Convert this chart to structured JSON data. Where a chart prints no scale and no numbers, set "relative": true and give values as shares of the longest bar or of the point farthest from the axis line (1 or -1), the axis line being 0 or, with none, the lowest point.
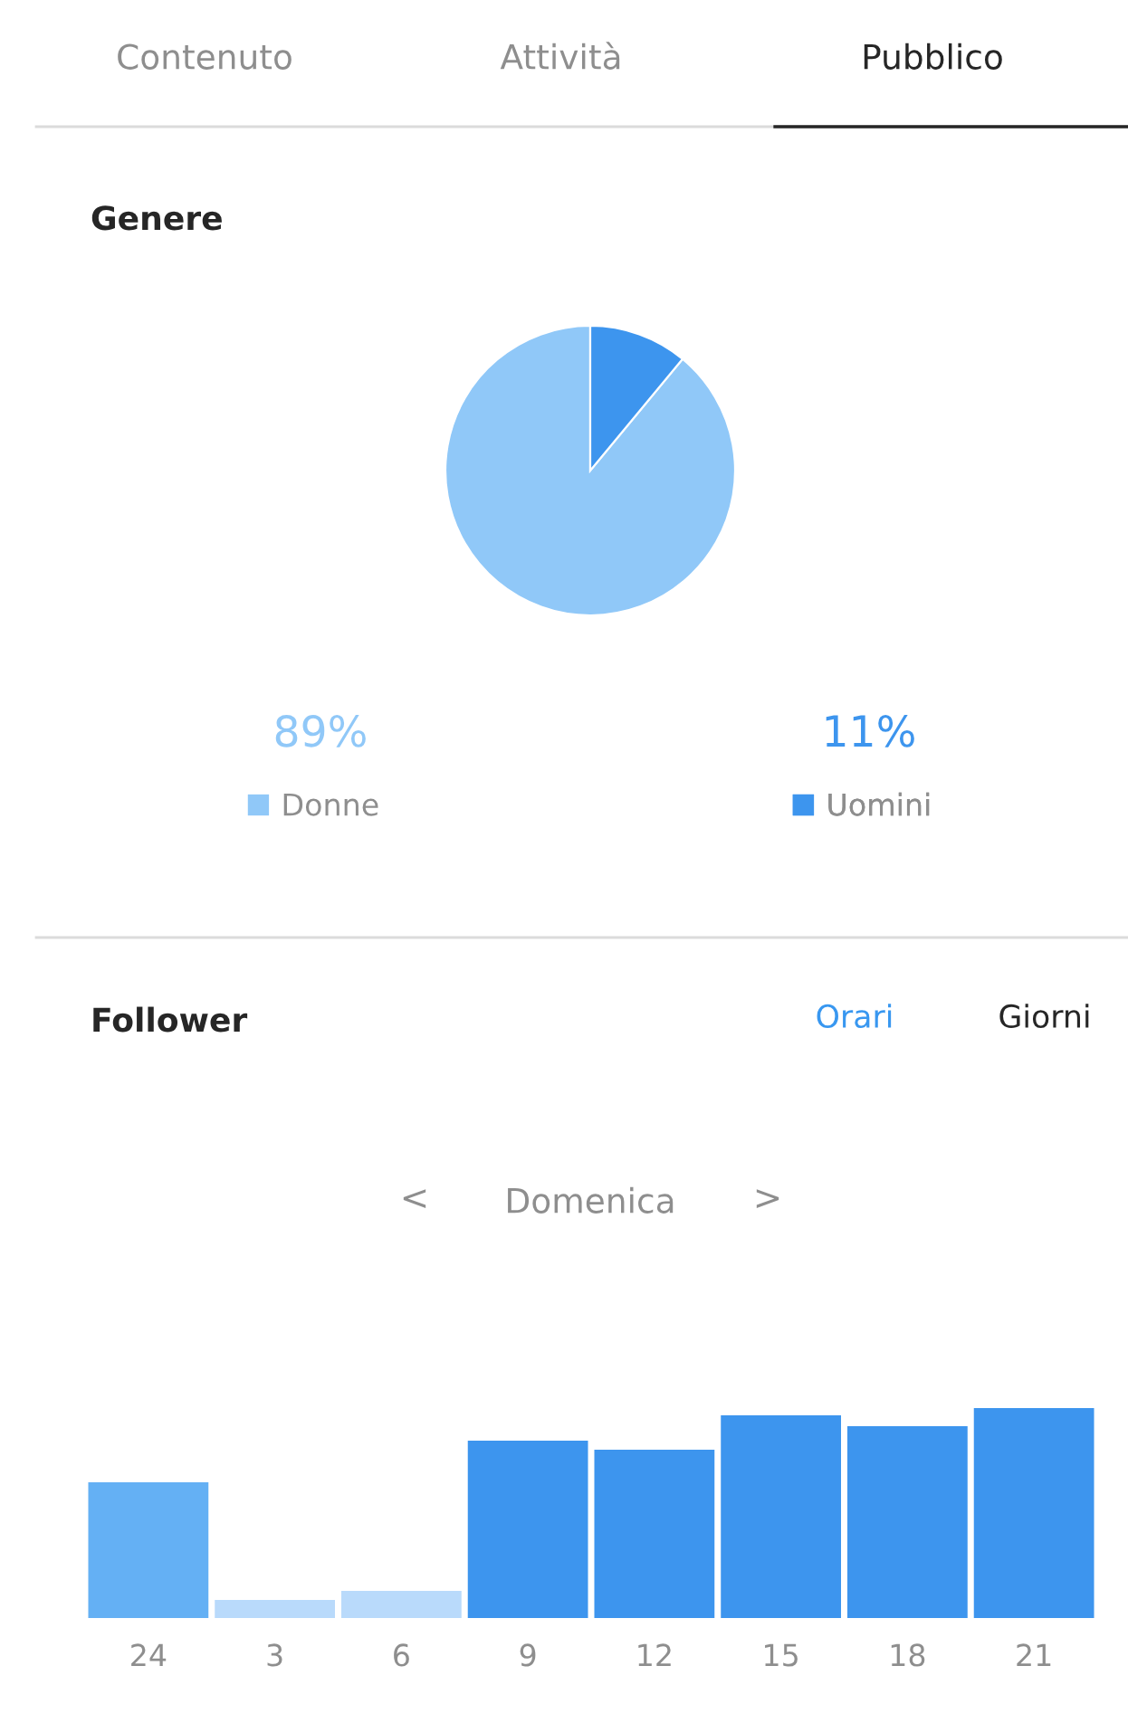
{
  "chart_data": [
    {
      "type": "other",
      "annotations": [
        "Contenuto",
        "Attività",
        "Pubblico"
      ]
    },
    {
      "type": "pie",
      "title": "Genere",
      "categories": [
        "Donne",
        "Uomini"
      ],
      "values": [
        89,
        11
      ],
      "colors": [
        "#90c8f8",
        "#3d95ee"
      ],
      "value_labels": [
        "89%",
        "11%"
      ],
      "legend": "bottom"
    },
    {
      "type": "bar",
      "title": "Follower",
      "annotations": [
        "Orari",
        "Giorni",
        "<",
        "Domenica",
        ">"
      ],
      "categories": [
        "24",
        "3",
        "6",
        "9",
        "12",
        "15",
        "18",
        "21"
      ],
      "relative": true,
      "values": [
        0.647,
        0.086,
        0.129,
        0.845,
        0.802,
        0.966,
        0.914,
        1
      ],
      "colors": [
        "#64b0f4",
        "#b9dafb",
        "#b9dafb",
        "#3d95ee",
        "#3d95ee",
        "#3d95ee",
        "#3d95ee",
        "#3d95ee"
      ]
    }
  ]
}
